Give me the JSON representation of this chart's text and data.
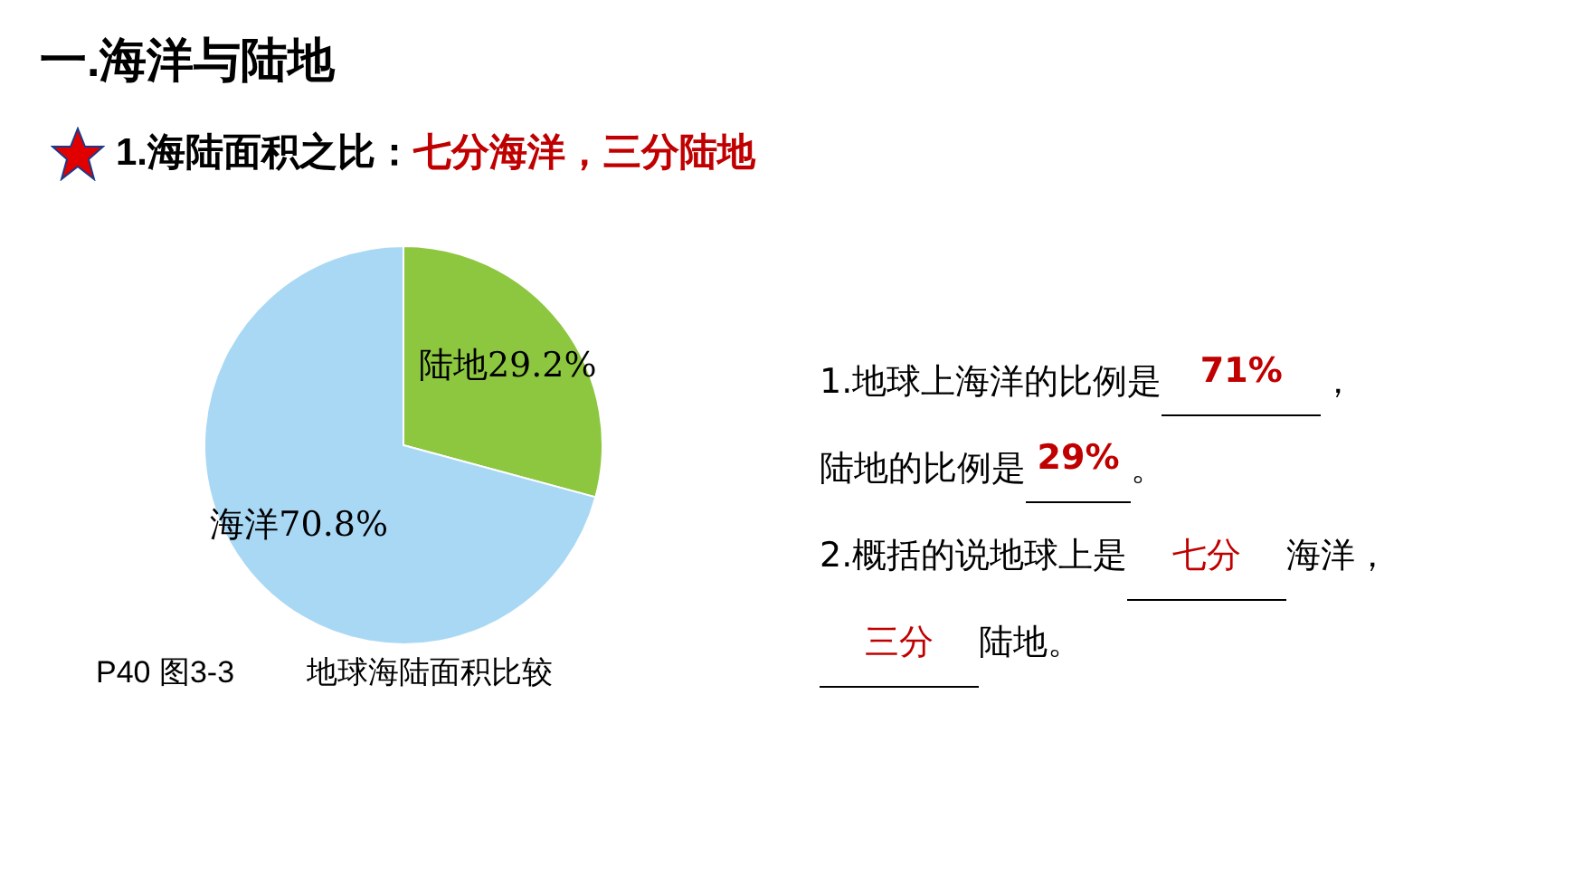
{
  "chart_data": {
    "type": "pie",
    "title": "一.海洋与陆地",
    "subtitle": "1.海陆面积之比：",
    "categories": [
      "陆地",
      "海洋"
    ],
    "values": [
      29.2,
      70.8
    ],
    "colors": [
      "#8dc63f",
      "#a9d8f5"
    ],
    "value_labels": [
      "29.2%",
      "70.8%"
    ],
    "annotations": [
      "七分海洋，三分陆地",
      "P40  图3-3",
      "地球海陆面积比较",
      "1.地球上海洋的比例是",
      "71%",
      "，",
      "陆地的比例是",
      "29%",
      "。",
      "2.概括的说地球上是",
      "七分",
      "海洋，",
      "三分",
      "陆地。"
    ]
  }
}
